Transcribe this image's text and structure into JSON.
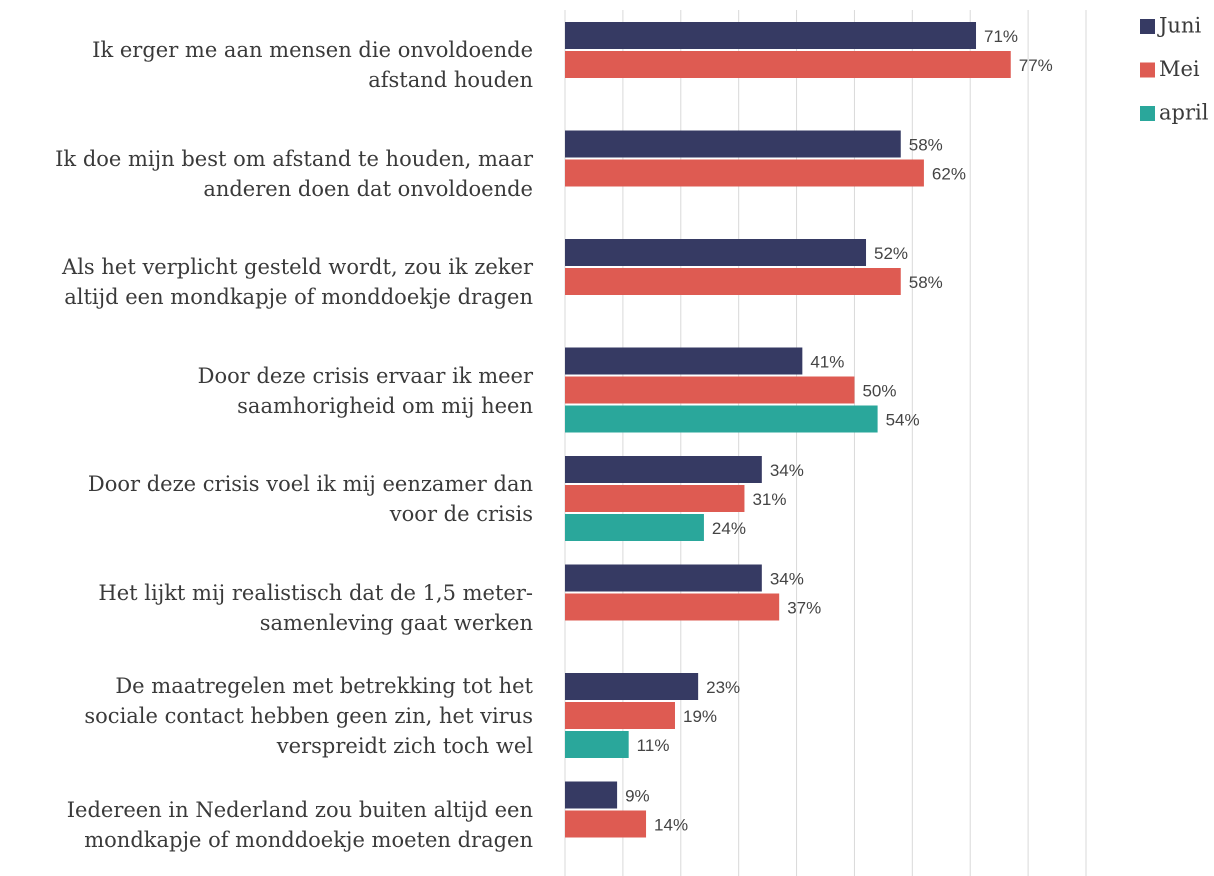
{
  "chart_data": {
    "type": "bar",
    "orientation": "horizontal",
    "categories": [
      "Ik erger me aan mensen die onvoldoende\nafstand houden",
      "Ik doe mijn best om afstand te houden, maar\nanderen doen dat onvoldoende",
      "Als het verplicht gesteld wordt, zou ik zeker\naltijd een mondkapje of monddoekje dragen",
      "Door deze crisis ervaar ik meer\nsaamhorigheid om mij heen",
      "Door deze crisis voel ik mij eenzamer dan\nvoor de crisis",
      "Het lijkt mij realistisch dat de 1,5 meter-\nsamenleving gaat werken",
      "De maatregelen met betrekking  tot het\nsociale contact hebben geen zin, het virus\nverspreidt zich toch wel",
      "Iedereen in Nederland zou buiten altijd een\nmondkapje of monddoekje moeten dragen"
    ],
    "series": [
      {
        "name": "Juni",
        "color": "#363a63",
        "values": [
          71,
          58,
          52,
          41,
          34,
          34,
          23,
          9
        ],
        "value_labels": [
          "71%",
          "58%",
          "52%",
          "41%",
          "34%",
          "34%",
          "23%",
          "9%"
        ]
      },
      {
        "name": "Mei",
        "color": "#de5b52",
        "values": [
          77,
          62,
          58,
          50,
          31,
          37,
          19,
          14
        ],
        "value_labels": [
          "77%",
          "62%",
          "58%",
          "50%",
          "31%",
          "37%",
          "19%",
          "14%"
        ]
      },
      {
        "name": "april",
        "color": "#2aa79b",
        "values": [
          null,
          null,
          null,
          54,
          24,
          null,
          11,
          null
        ],
        "value_labels": [
          null,
          null,
          null,
          "54%",
          "24%",
          null,
          "11%",
          null
        ]
      }
    ],
    "xlim": [
      0,
      90
    ],
    "xticks": [
      0,
      10,
      20,
      30,
      40,
      50,
      60,
      70,
      80,
      90
    ],
    "grid": true,
    "legend": "top-right"
  }
}
